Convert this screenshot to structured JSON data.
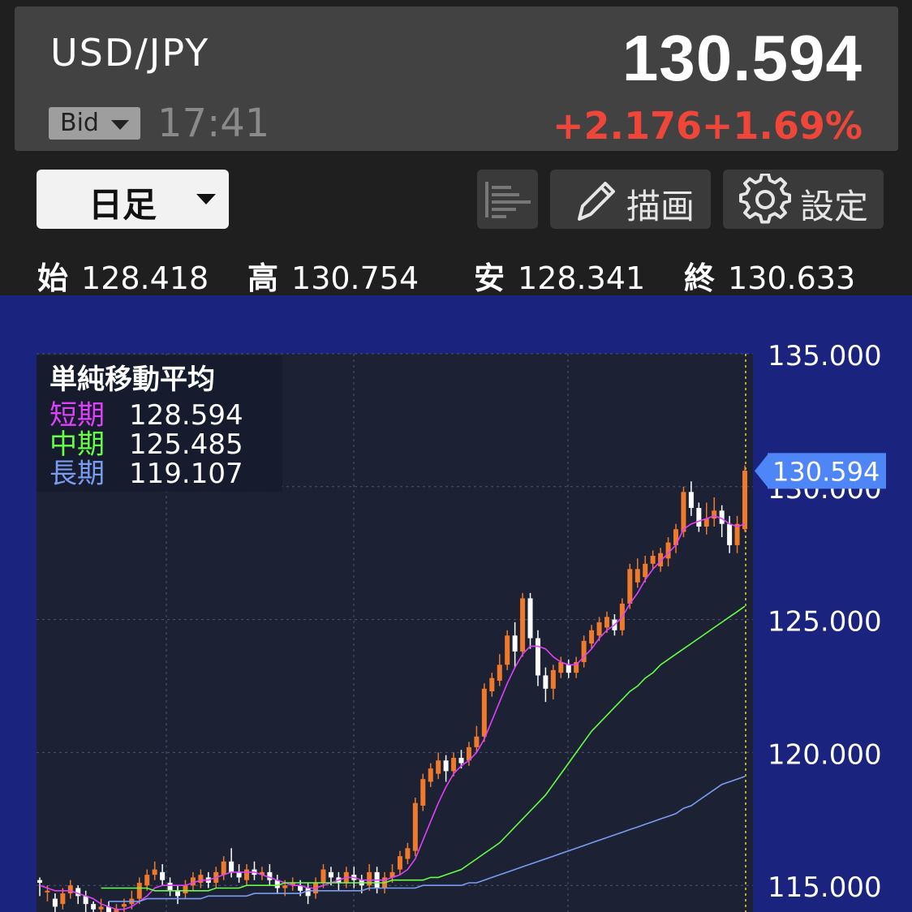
{
  "header": {
    "pair": "USD/JPY",
    "price": "130.594",
    "bid_label": "Bid",
    "time": "17:41",
    "change_abs": "+2.176",
    "change_pct": "+1.69%"
  },
  "toolbar": {
    "period": "日足",
    "draw_label": "描画",
    "settings_label": "設定",
    "icons": [
      "list-icon",
      "pencil-icon",
      "gear-icon"
    ]
  },
  "ohlc": {
    "open_label": "始",
    "open": "128.418",
    "high_label": "高",
    "high": "130.754",
    "low_label": "安",
    "low": "128.341",
    "close_label": "終",
    "close": "130.633"
  },
  "legend": {
    "title": "単純移動平均",
    "short_label": "短期",
    "short_value": "128.594",
    "mid_label": "中期",
    "mid_value": "125.485",
    "long_label": "長期",
    "long_value": "119.107"
  },
  "colors": {
    "up": "#f07a2c",
    "down": "#ffffff",
    "short_ma": "#e040fb",
    "mid_ma": "#66ff44",
    "long_ma": "#7a9cf0",
    "price_tag": "#4f86f7",
    "chart_bg": "#1a237e",
    "plot_bg": "#1c2233",
    "change": "#f0463a"
  },
  "chart_data": {
    "type": "candlestick",
    "ylim": [
      114.0,
      135.0
    ],
    "yticks": [
      "135.000",
      "130.000",
      "125.000",
      "120.000",
      "115.000"
    ],
    "ytick_values": [
      135,
      130,
      125,
      120,
      115
    ],
    "current_price": 130.594,
    "current_price_label": "130.594",
    "grid": true,
    "candles": [
      [
        115.2,
        115.1,
        115.3,
        114.6
      ],
      [
        114.8,
        114.8,
        115.0,
        114.4
      ],
      [
        114.5,
        114.2,
        114.7,
        114.0
      ],
      [
        114.3,
        114.7,
        114.9,
        114.1
      ],
      [
        114.7,
        115.0,
        115.2,
        114.5
      ],
      [
        114.9,
        114.6,
        115.0,
        114.3
      ],
      [
        114.6,
        114.3,
        114.8,
        114.0
      ],
      [
        114.3,
        114.1,
        114.4,
        113.8
      ],
      [
        114.1,
        114.2,
        114.5,
        113.9
      ],
      [
        114.2,
        114.0,
        114.4,
        113.8
      ],
      [
        114.0,
        114.1,
        114.3,
        113.7
      ],
      [
        114.2,
        114.3,
        114.5,
        114.0
      ],
      [
        114.3,
        114.5,
        114.8,
        114.1
      ],
      [
        114.5,
        115.1,
        115.3,
        114.3
      ],
      [
        115.0,
        115.4,
        115.6,
        114.8
      ],
      [
        115.4,
        115.6,
        115.9,
        115.2
      ],
      [
        115.5,
        115.2,
        115.8,
        115.0
      ],
      [
        115.1,
        114.8,
        115.3,
        114.6
      ],
      [
        114.8,
        114.6,
        115.0,
        114.3
      ],
      [
        114.7,
        115.0,
        115.2,
        114.5
      ],
      [
        115.0,
        115.3,
        115.5,
        114.8
      ],
      [
        115.1,
        115.4,
        115.6,
        114.9
      ],
      [
        115.3,
        115.1,
        115.5,
        114.9
      ],
      [
        115.1,
        115.5,
        115.7,
        114.9
      ],
      [
        115.4,
        115.9,
        116.1,
        115.2
      ],
      [
        115.9,
        115.5,
        116.4,
        115.3
      ],
      [
        115.5,
        115.3,
        115.8,
        115.1
      ],
      [
        115.2,
        115.6,
        115.8,
        115.0
      ],
      [
        115.6,
        115.4,
        115.9,
        115.2
      ],
      [
        115.4,
        115.5,
        115.7,
        115.2
      ],
      [
        115.5,
        115.2,
        115.8,
        115.0
      ],
      [
        115.2,
        114.9,
        115.4,
        114.7
      ],
      [
        114.9,
        115.0,
        115.2,
        114.6
      ],
      [
        115.0,
        115.1,
        115.3,
        114.8
      ],
      [
        115.0,
        114.8,
        115.2,
        114.6
      ],
      [
        114.9,
        114.6,
        115.1,
        114.3
      ],
      [
        114.7,
        115.1,
        115.3,
        114.5
      ],
      [
        115.1,
        115.6,
        115.8,
        114.9
      ],
      [
        115.5,
        115.3,
        115.7,
        115.0
      ],
      [
        115.3,
        115.1,
        115.5,
        114.8
      ],
      [
        115.1,
        115.5,
        115.7,
        114.9
      ],
      [
        115.4,
        115.2,
        115.7,
        114.9
      ],
      [
        115.2,
        115.0,
        115.4,
        114.7
      ],
      [
        115.0,
        115.5,
        115.8,
        114.8
      ],
      [
        115.5,
        114.9,
        115.7,
        114.7
      ],
      [
        114.9,
        115.3,
        115.5,
        114.7
      ],
      [
        115.3,
        115.5,
        115.8,
        115.1
      ],
      [
        115.6,
        116.1,
        116.3,
        115.4
      ],
      [
        116.0,
        116.4,
        116.6,
        115.8
      ],
      [
        116.3,
        118.1,
        118.3,
        116.1
      ],
      [
        118.0,
        119.0,
        119.2,
        117.8
      ],
      [
        118.9,
        119.4,
        119.6,
        118.7
      ],
      [
        119.2,
        119.7,
        120.0,
        119.0
      ],
      [
        119.7,
        119.3,
        119.9,
        118.9
      ],
      [
        119.3,
        119.8,
        120.0,
        119.1
      ],
      [
        119.8,
        119.6,
        120.1,
        119.4
      ],
      [
        119.7,
        120.2,
        120.4,
        119.5
      ],
      [
        120.2,
        120.6,
        121.0,
        120.0
      ],
      [
        120.6,
        122.4,
        122.6,
        120.4
      ],
      [
        122.3,
        122.8,
        123.0,
        122.1
      ],
      [
        122.7,
        123.3,
        123.7,
        122.5
      ],
      [
        123.3,
        124.4,
        124.6,
        123.1
      ],
      [
        124.4,
        123.8,
        124.9,
        123.2
      ],
      [
        123.8,
        125.8,
        126.0,
        123.6
      ],
      [
        125.8,
        124.3,
        126.0,
        123.9
      ],
      [
        124.3,
        122.9,
        124.6,
        122.5
      ],
      [
        122.9,
        122.4,
        123.2,
        121.9
      ],
      [
        122.4,
        123.1,
        123.3,
        122.0
      ],
      [
        123.0,
        123.4,
        123.6,
        122.8
      ],
      [
        123.3,
        123.0,
        123.5,
        122.8
      ],
      [
        123.0,
        123.4,
        123.6,
        122.8
      ],
      [
        123.4,
        124.2,
        124.4,
        123.2
      ],
      [
        124.1,
        124.6,
        124.8,
        123.9
      ],
      [
        124.4,
        124.9,
        125.1,
        124.2
      ],
      [
        124.7,
        125.1,
        125.3,
        124.5
      ],
      [
        125.0,
        124.6,
        125.2,
        124.4
      ],
      [
        124.6,
        125.6,
        125.8,
        124.4
      ],
      [
        125.6,
        126.9,
        127.1,
        125.4
      ],
      [
        126.4,
        126.9,
        127.3,
        126.2
      ],
      [
        126.6,
        127.1,
        127.4,
        126.4
      ],
      [
        127.1,
        127.4,
        127.6,
        126.9
      ],
      [
        127.0,
        127.5,
        127.7,
        126.8
      ],
      [
        127.3,
        127.9,
        128.1,
        127.0
      ],
      [
        127.8,
        128.4,
        128.6,
        127.5
      ],
      [
        128.3,
        129.8,
        130.0,
        128.1
      ],
      [
        129.8,
        129.2,
        130.2,
        128.9
      ],
      [
        129.2,
        128.5,
        129.4,
        128.3
      ],
      [
        128.5,
        128.8,
        129.4,
        128.2
      ],
      [
        128.8,
        129.1,
        129.6,
        128.5
      ],
      [
        129.1,
        128.6,
        129.3,
        128.1
      ],
      [
        128.6,
        127.8,
        128.9,
        127.5
      ],
      [
        127.8,
        128.6,
        128.9,
        127.5
      ],
      [
        128.4,
        130.6,
        130.8,
        128.3
      ]
    ],
    "series": [
      {
        "name": "短期",
        "values": [
          115.0,
          114.9,
          114.8,
          114.8,
          114.8,
          114.7,
          114.6,
          114.5,
          114.3,
          114.2,
          114.1,
          114.1,
          114.2,
          114.4,
          114.6,
          114.9,
          115.0,
          115.0,
          115.0,
          115.0,
          115.1,
          115.2,
          115.2,
          115.3,
          115.4,
          115.5,
          115.5,
          115.5,
          115.5,
          115.4,
          115.3,
          115.2,
          115.1,
          115.0,
          115.0,
          114.9,
          114.9,
          115.0,
          115.1,
          115.2,
          115.3,
          115.3,
          115.2,
          115.2,
          115.2,
          115.2,
          115.3,
          115.4,
          115.6,
          116.0,
          116.7,
          117.4,
          118.1,
          118.7,
          119.2,
          119.5,
          119.7,
          120.0,
          120.5,
          121.2,
          121.9,
          122.6,
          123.2,
          123.7,
          124.0,
          124.0,
          123.9,
          123.6,
          123.4,
          123.3,
          123.3,
          123.6,
          123.9,
          124.3,
          124.6,
          124.8,
          125.1,
          125.6,
          126.0,
          126.5,
          126.9,
          127.2,
          127.5,
          127.8,
          128.4,
          128.6,
          128.7,
          128.8,
          128.9,
          128.8,
          128.6,
          128.5,
          128.6
        ]
      },
      {
        "name": "中期",
        "values": [
          114.9,
          114.9,
          114.9,
          114.9,
          114.9,
          114.9,
          114.9,
          114.8,
          114.8,
          114.8,
          114.8,
          114.8,
          114.8,
          114.8,
          114.8,
          114.9,
          114.9,
          114.9,
          114.9,
          115.0,
          115.0,
          115.0,
          115.0,
          115.0,
          115.1,
          115.1,
          115.1,
          115.1,
          115.1,
          115.1,
          115.1,
          115.1,
          115.1,
          115.1,
          115.1,
          115.1,
          115.1,
          115.1,
          115.2,
          115.2,
          115.2,
          115.2,
          115.2,
          115.3,
          115.3,
          115.4,
          115.5,
          115.6,
          115.8,
          116.0,
          116.2,
          116.4,
          116.6,
          116.9,
          117.2,
          117.5,
          117.8,
          118.1,
          118.4,
          118.8,
          119.2,
          119.6,
          120.0,
          120.4,
          120.8,
          121.1,
          121.4,
          121.7,
          122.0,
          122.3,
          122.5,
          122.8,
          123.0,
          123.3,
          123.5,
          123.7,
          123.9,
          124.1,
          124.3,
          124.5,
          124.7,
          124.9,
          125.1,
          125.3,
          125.5
        ]
      },
      {
        "name": "長期",
        "values": [
          114.4,
          114.4,
          114.4,
          114.4,
          114.4,
          114.5,
          114.5,
          114.5,
          114.5,
          114.5,
          114.5,
          114.5,
          114.5,
          114.6,
          114.6,
          114.6,
          114.6,
          114.6,
          114.6,
          114.7,
          114.7,
          114.7,
          114.7,
          114.7,
          114.7,
          114.7,
          114.8,
          114.8,
          114.8,
          114.8,
          114.8,
          114.8,
          114.8,
          114.8,
          114.9,
          114.9,
          114.9,
          114.9,
          114.9,
          114.9,
          114.9,
          115.0,
          115.0,
          115.0,
          115.0,
          115.0,
          115.0,
          115.1,
          115.1,
          115.2,
          115.3,
          115.4,
          115.5,
          115.6,
          115.7,
          115.8,
          115.9,
          116.0,
          116.1,
          116.2,
          116.3,
          116.4,
          116.5,
          116.6,
          116.7,
          116.8,
          116.9,
          117.0,
          117.1,
          117.2,
          117.3,
          117.4,
          117.5,
          117.6,
          117.7,
          117.9,
          118.0,
          118.2,
          118.4,
          118.6,
          118.8,
          118.9,
          119.0,
          119.1
        ]
      }
    ]
  }
}
